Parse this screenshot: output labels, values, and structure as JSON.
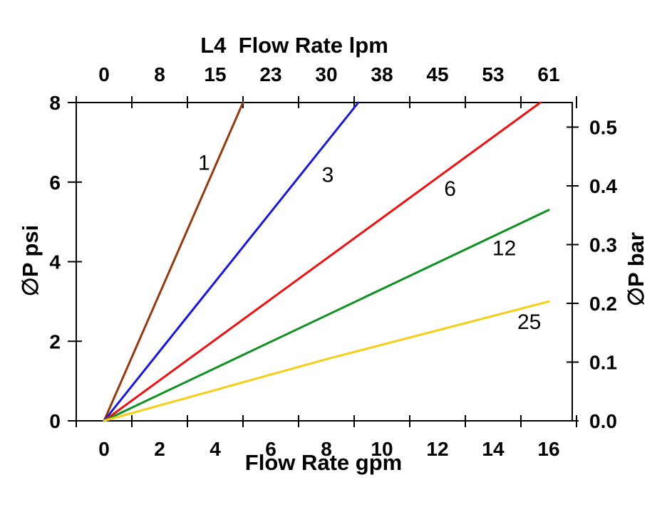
{
  "chart_data": {
    "type": "line",
    "title": "L4  Flow Rate lpm",
    "top_axis": {
      "title": "L4  Flow Rate lpm",
      "unit": "lpm",
      "tick_labels": [
        "0",
        "8",
        "15",
        "23",
        "30",
        "38",
        "45",
        "53",
        "61"
      ],
      "tick_label_positions_gpm": [
        0,
        2,
        4,
        6,
        8,
        10,
        12,
        14,
        16
      ],
      "tick_mark_positions_gpm": [
        -1,
        1,
        3,
        5,
        7,
        9,
        11,
        13,
        15,
        17
      ]
    },
    "bottom_axis": {
      "title": "Flow Rate gpm",
      "unit": "gpm",
      "tick_labels": [
        "0",
        "2",
        "4",
        "6",
        "8",
        "10",
        "12",
        "14",
        "16"
      ],
      "tick_label_positions_gpm": [
        0,
        2,
        4,
        6,
        8,
        10,
        12,
        14,
        16
      ],
      "tick_mark_positions_gpm": [
        -1,
        1,
        3,
        5,
        7,
        9,
        11,
        13,
        15,
        17
      ],
      "range_gpm": [
        -1,
        16.85
      ]
    },
    "left_axis": {
      "title": "∅P psi",
      "unit": "psi",
      "tick_labels": [
        "0",
        "2",
        "4",
        "6",
        "8"
      ],
      "tick_values_psi": [
        0,
        2,
        4,
        6,
        8
      ],
      "range_psi": [
        0,
        8
      ]
    },
    "right_axis": {
      "title": "∅P bar",
      "unit": "bar",
      "tick_labels": [
        "0.0",
        "0.1",
        "0.2",
        "0.3",
        "0.4",
        "0.5"
      ],
      "tick_values_bar": [
        0.0,
        0.1,
        0.2,
        0.3,
        0.4,
        0.5
      ]
    },
    "grid": false,
    "legend": "inline-labels-on-lines",
    "series": [
      {
        "label": "1",
        "color": "#96390F",
        "points_gpm_psi": [
          [
            0,
            0
          ],
          [
            5.0,
            8.0
          ]
        ],
        "label_pos_gpm_psi": [
          3.6,
          6.5
        ]
      },
      {
        "label": "3",
        "color": "#1818D8",
        "points_gpm_psi": [
          [
            0,
            0
          ],
          [
            9.15,
            8.0
          ]
        ],
        "label_pos_gpm_psi": [
          8.05,
          6.2
        ]
      },
      {
        "label": "6",
        "color": "#EE1111",
        "points_gpm_psi": [
          [
            0,
            0
          ],
          [
            15.7,
            8.0
          ]
        ],
        "label_pos_gpm_psi": [
          12.45,
          5.85
        ]
      },
      {
        "label": "12",
        "color": "#0E9023",
        "points_gpm_psi": [
          [
            0,
            0
          ],
          [
            8.0,
            2.65
          ],
          [
            16.0,
            5.3
          ]
        ],
        "label_pos_gpm_psi": [
          14.4,
          4.35
        ]
      },
      {
        "label": "25",
        "color": "#F7CE17",
        "points_gpm_psi": [
          [
            0,
            0
          ],
          [
            8.0,
            1.55
          ],
          [
            16.0,
            3.0
          ]
        ],
        "label_pos_gpm_psi": [
          15.3,
          2.5
        ]
      }
    ]
  }
}
